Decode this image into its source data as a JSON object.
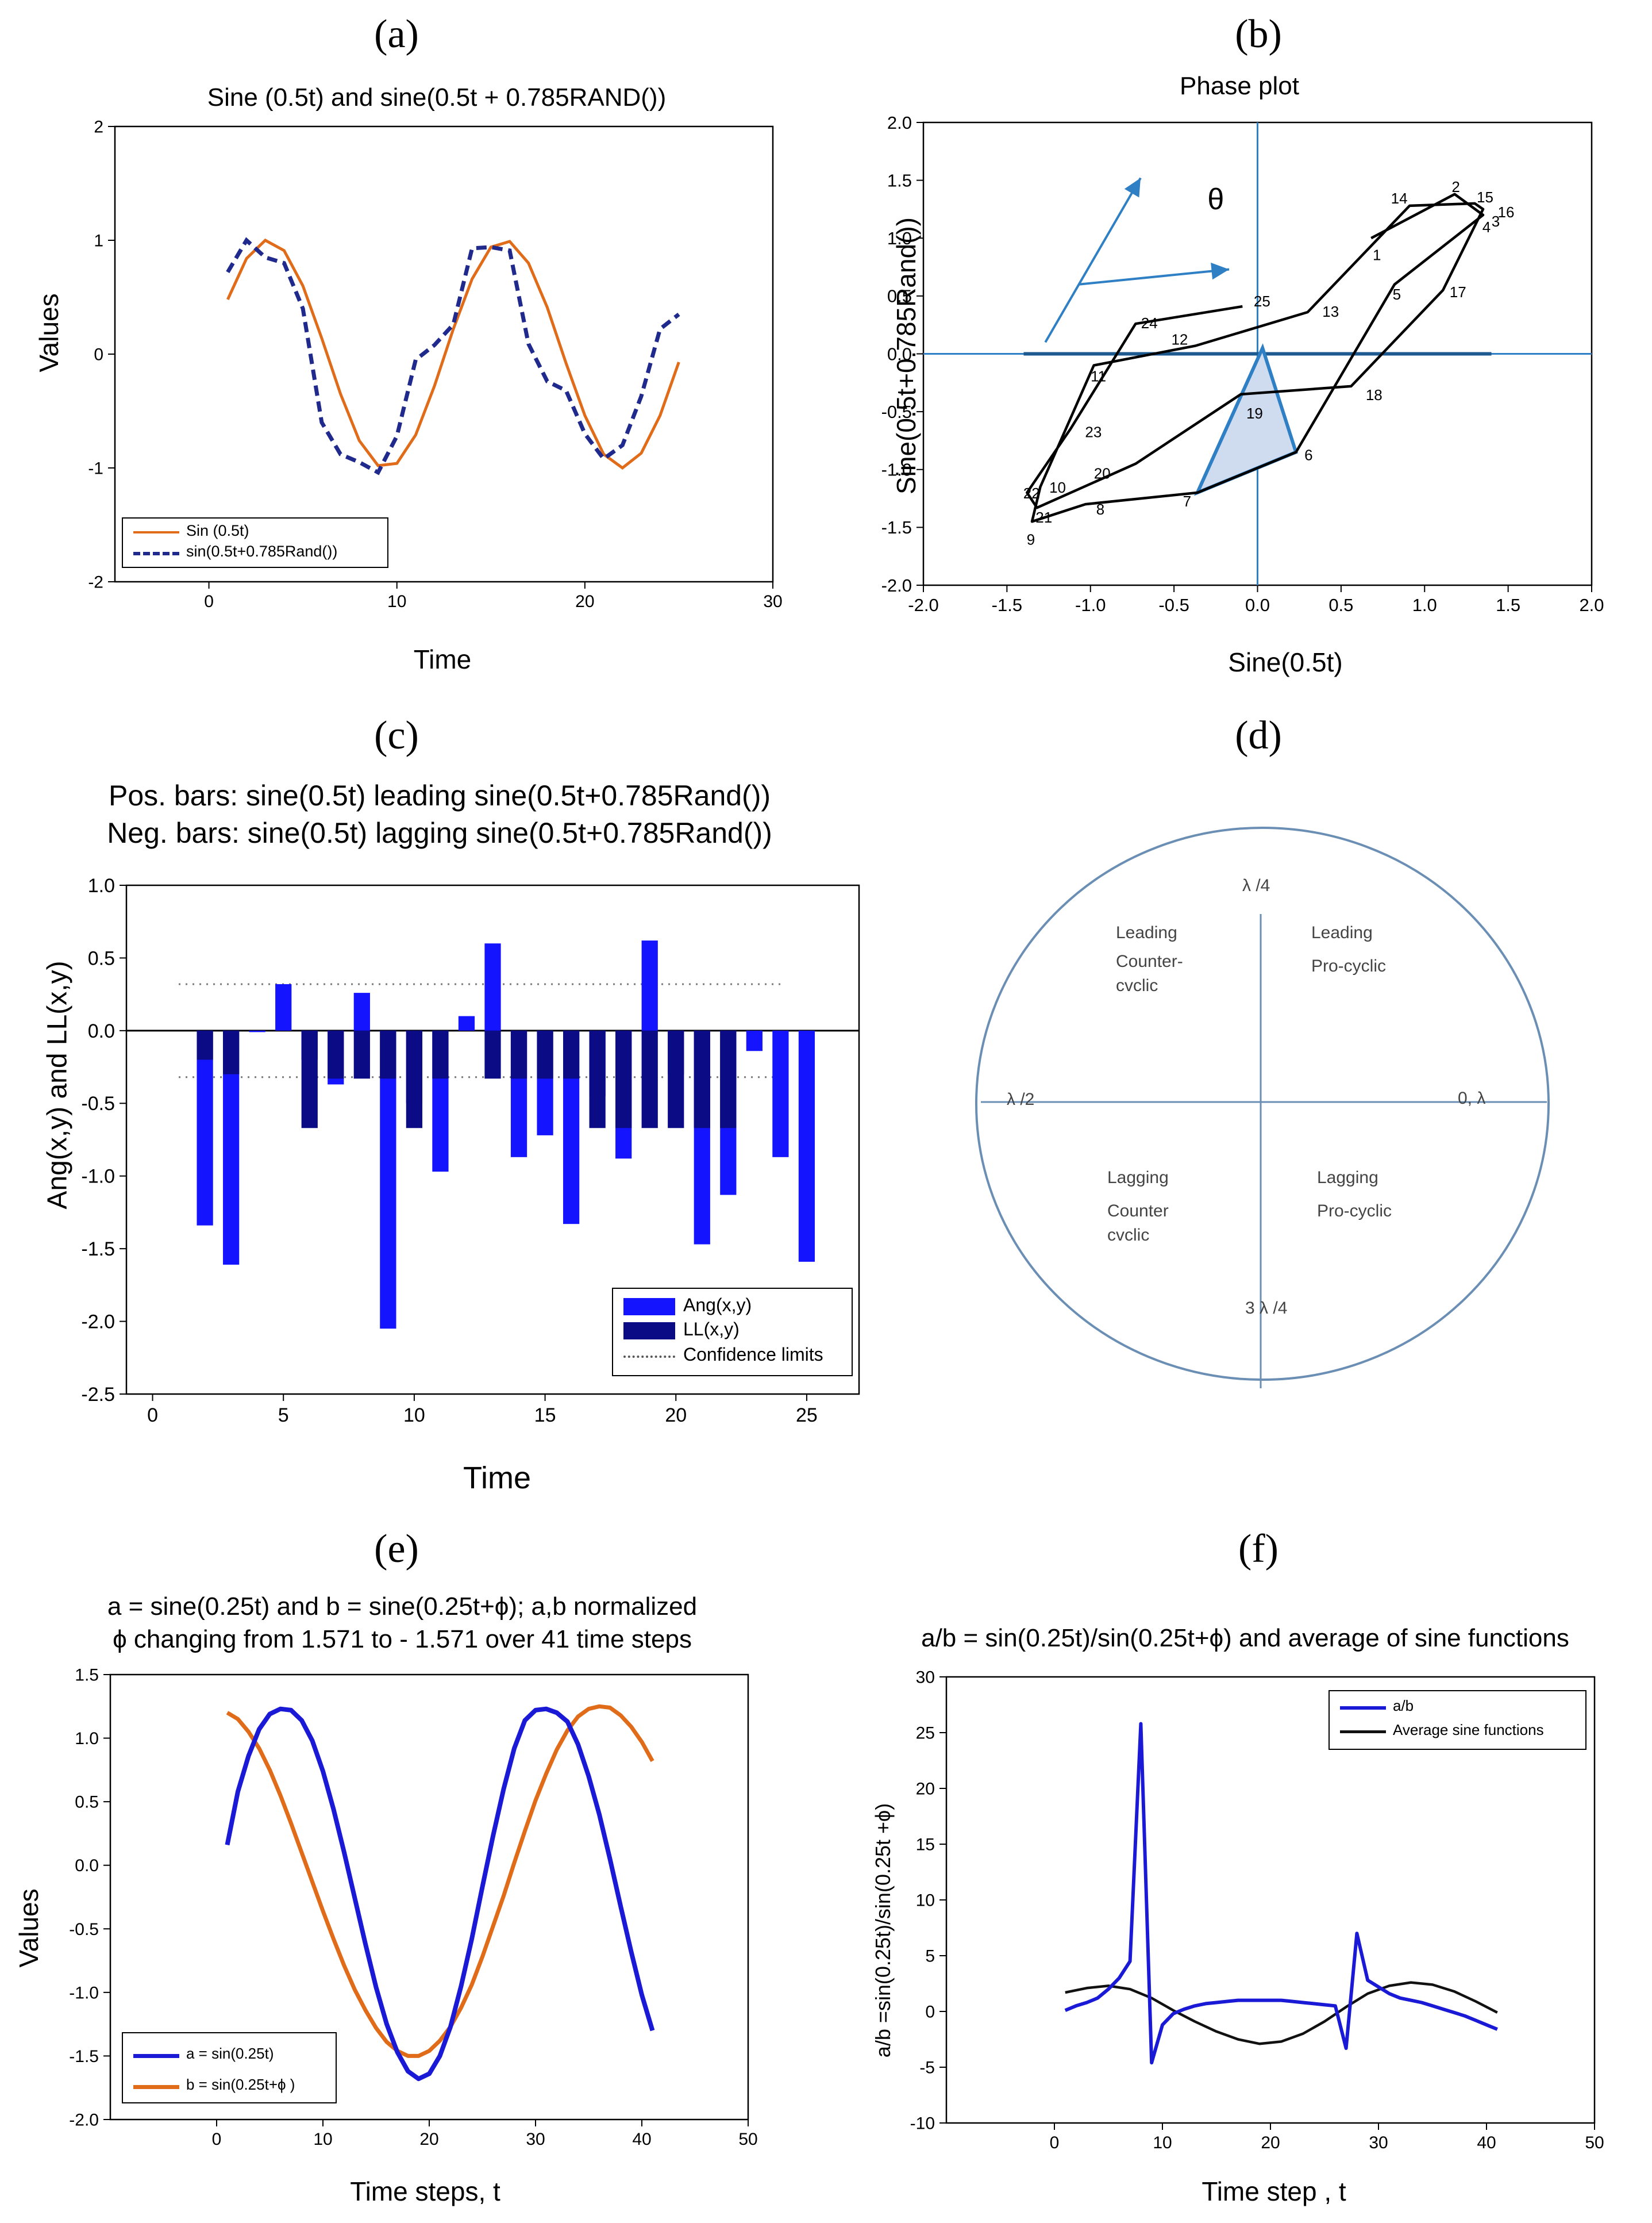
{
  "panels": {
    "a": {
      "label": "(a)"
    },
    "b": {
      "label": "(b)"
    },
    "c": {
      "label": "(c)"
    },
    "d": {
      "label": "(d)"
    },
    "e": {
      "label": "(e)"
    },
    "f": {
      "label": "(f)"
    }
  },
  "colors": {
    "orange": "#e06c1a",
    "navy": "#1f2a8c",
    "blue": "#1a1ad6",
    "darkblue": "#0b0b85",
    "brightblue": "#1414ff",
    "steelblue": "#2f7fc4"
  },
  "chart_data": [
    {
      "id": "a",
      "type": "line",
      "title": "Sine (0.5t) and sine(0.5t + 0.785RAND())",
      "xlabel": "Time",
      "ylabel": "Values",
      "xlim": [
        -5,
        30
      ],
      "ylim": [
        -2,
        2
      ],
      "xticks": [
        0,
        10,
        20,
        30
      ],
      "yticks": [
        -2,
        -1,
        0,
        1,
        2
      ],
      "legend": "bottom-left",
      "series": [
        {
          "name": "Sin (0.5t)",
          "style": "solid",
          "color": "#e06c1a",
          "x": [
            1,
            2,
            3,
            4,
            5,
            6,
            7,
            8,
            9,
            10,
            11,
            12,
            13,
            14,
            15,
            16,
            17,
            18,
            19,
            20,
            21,
            22,
            23,
            24,
            25
          ],
          "y": [
            0.48,
            0.84,
            1.0,
            0.91,
            0.6,
            0.14,
            -0.35,
            -0.76,
            -0.98,
            -0.96,
            -0.71,
            -0.28,
            0.22,
            0.66,
            0.94,
            0.99,
            0.8,
            0.41,
            -0.08,
            -0.54,
            -0.88,
            -1.0,
            -0.87,
            -0.54,
            -0.07
          ]
        },
        {
          "name": "sin(0.5t+0.785Rand())",
          "style": "dashed",
          "color": "#1f2a8c",
          "x": [
            1,
            2,
            3,
            4,
            5,
            6,
            7,
            8,
            9,
            10,
            11,
            12,
            13,
            14,
            15,
            16,
            17,
            18,
            19,
            20,
            21,
            22,
            23,
            24,
            25
          ],
          "y": [
            0.72,
            1.0,
            0.85,
            0.8,
            0.4,
            -0.6,
            -0.88,
            -0.95,
            -1.04,
            -0.72,
            -0.05,
            0.08,
            0.26,
            0.93,
            0.94,
            0.91,
            0.09,
            -0.24,
            -0.32,
            -0.7,
            -0.92,
            -0.8,
            -0.37,
            0.22,
            0.35
          ]
        }
      ]
    },
    {
      "id": "b",
      "type": "line",
      "title": "Phase plot",
      "xlabel": "Sine(0.5t)",
      "ylabel": "Sine(0.5t+0.785Rand())",
      "xlim": [
        -2.0,
        2.0
      ],
      "ylim": [
        -2.0,
        2.0
      ],
      "xticks": [
        "-2.0",
        "-1.5",
        "-1.0",
        "-0.5",
        "0.0",
        "0.5",
        "1.0",
        "1.5",
        "2.0"
      ],
      "yticks": [
        "-2.0",
        "-1.5",
        "-1.0",
        "-0.5",
        "0.0",
        "0.5",
        "1.0",
        "1.5",
        "2.0"
      ],
      "annotation": "θ",
      "points": [
        {
          "t": 1,
          "x": 0.68,
          "y": 1.0
        },
        {
          "t": 2,
          "x": 1.18,
          "y": 1.38
        },
        {
          "t": 3,
          "x": 1.35,
          "y": 1.2
        },
        {
          "t": 4,
          "x": 1.35,
          "y": 1.2
        },
        {
          "t": 5,
          "x": 0.82,
          "y": 0.6
        },
        {
          "t": 6,
          "x": 0.23,
          "y": -0.85
        },
        {
          "t": 7,
          "x": -0.36,
          "y": -1.2
        },
        {
          "t": 8,
          "x": -1.03,
          "y": -1.3
        },
        {
          "t": 9,
          "x": -1.35,
          "y": -1.45
        },
        {
          "t": 10,
          "x": -1.3,
          "y": -1.15
        },
        {
          "t": 11,
          "x": -0.98,
          "y": -0.1
        },
        {
          "t": 12,
          "x": -0.37,
          "y": 0.07
        },
        {
          "t": 13,
          "x": 0.3,
          "y": 0.36
        },
        {
          "t": 14,
          "x": 0.91,
          "y": 1.28
        },
        {
          "t": 15,
          "x": 1.3,
          "y": 1.3
        },
        {
          "t": 16,
          "x": 1.35,
          "y": 1.25
        },
        {
          "t": 17,
          "x": 1.11,
          "y": 0.55
        },
        {
          "t": 18,
          "x": 0.56,
          "y": -0.28
        },
        {
          "t": 19,
          "x": -0.1,
          "y": -0.35
        },
        {
          "t": 20,
          "x": -0.73,
          "y": -0.95
        },
        {
          "t": 21,
          "x": -1.32,
          "y": -1.33
        },
        {
          "t": 22,
          "x": -1.38,
          "y": -1.2
        },
        {
          "t": 23,
          "x": -1.12,
          "y": -0.65
        },
        {
          "t": 24,
          "x": -0.73,
          "y": 0.26
        },
        {
          "t": 25,
          "x": -0.09,
          "y": 0.41
        }
      ]
    },
    {
      "id": "c",
      "type": "bar",
      "title": "Pos. bars: sine(0.5t) leading sine(0.5t+0.785Rand())",
      "subtitle": "Neg. bars: sine(0.5t) lagging sine(0.5t+0.785Rand())",
      "xlabel": "Time",
      "ylabel": "Ang(x,y) and LL(x,y)",
      "xlim": [
        -1,
        27
      ],
      "ylim": [
        -2.5,
        1.0
      ],
      "xticks": [
        0,
        5,
        10,
        15,
        20,
        25
      ],
      "yticks": [
        "-2.5",
        "-2.0",
        "-1.5",
        "-1.0",
        "-0.5",
        "0.0",
        "0.5",
        "1.0"
      ],
      "confidence_limits": [
        0.32,
        -0.32
      ],
      "x": [
        2,
        3,
        4,
        5,
        6,
        7,
        8,
        9,
        10,
        11,
        12,
        13,
        14,
        15,
        16,
        17,
        18,
        19,
        20,
        21,
        22,
        23,
        24,
        25
      ],
      "series": [
        {
          "name": "Ang(x,y)",
          "color": "#1414ff",
          "values": [
            -1.34,
            -1.61,
            -0.01,
            0.32,
            -0.2,
            -0.37,
            0.26,
            -2.05,
            -0.5,
            -0.97,
            0.1,
            0.6,
            -0.87,
            -0.72,
            -1.33,
            -0.45,
            -0.88,
            0.62,
            -0.3,
            -1.47,
            -1.13,
            -0.14,
            -0.87,
            -1.59
          ]
        },
        {
          "name": "LL(x,y)",
          "color": "#0b0b85",
          "values": [
            -0.2,
            -0.3,
            0,
            0,
            -0.67,
            -0.33,
            -0.33,
            -0.33,
            -0.67,
            -0.33,
            0,
            -0.33,
            -0.33,
            -0.33,
            -0.33,
            -0.67,
            -0.67,
            -0.67,
            -0.67,
            -0.67,
            -0.67,
            0,
            0,
            0
          ]
        }
      ],
      "legend_extra": "Confidence limits"
    },
    {
      "id": "d",
      "type": "diagram",
      "axis_labels": {
        "top": "λ /4",
        "left": "λ /2",
        "right": "0, λ",
        "bottom": "3 λ /4"
      },
      "quadrants": {
        "ul": [
          "Leading",
          "Counter-",
          "cvclic"
        ],
        "ur": [
          "Leading",
          "Pro-cyclic"
        ],
        "ll": [
          "Lagging",
          "Counter",
          "cvclic"
        ],
        "lr": [
          "Lagging",
          "Pro-cyclic"
        ]
      }
    },
    {
      "id": "e",
      "type": "line",
      "title": "a = sine(0.25t) and b = sine(0.25t+ϕ); a,b normalized",
      "subtitle": "ϕ changing from 1.571 to - 1.571 over 41 time steps",
      "xlabel": "Time steps, t",
      "ylabel": "Values",
      "xlim": [
        -10,
        50
      ],
      "ylim": [
        -2.0,
        1.5
      ],
      "xticks": [
        0,
        10,
        20,
        30,
        40,
        50
      ],
      "yticks": [
        "-2.0",
        "-1.5",
        "-1.0",
        "-0.5",
        "0.0",
        "0.5",
        "1.0",
        "1.5"
      ],
      "legend": "bottom-left",
      "series": [
        {
          "name": "a = sin(0.25t)",
          "color": "#1a1ad6",
          "x": [
            1,
            2,
            3,
            4,
            5,
            6,
            7,
            8,
            9,
            10,
            11,
            12,
            13,
            14,
            15,
            16,
            17,
            18,
            19,
            20,
            21,
            22,
            23,
            24,
            25,
            26,
            27,
            28,
            29,
            30,
            31,
            32,
            33,
            34,
            35,
            36,
            37,
            38,
            39,
            40,
            41
          ],
          "y": [
            0.16,
            0.58,
            0.86,
            1.07,
            1.19,
            1.23,
            1.22,
            1.14,
            0.98,
            0.74,
            0.44,
            0.1,
            -0.26,
            -0.62,
            -0.96,
            -1.25,
            -1.47,
            -1.62,
            -1.68,
            -1.64,
            -1.5,
            -1.27,
            -0.95,
            -0.58,
            -0.17,
            0.23,
            0.6,
            0.92,
            1.14,
            1.22,
            1.23,
            1.2,
            1.13,
            0.95,
            0.7,
            0.4,
            0.05,
            -0.32,
            -0.68,
            -1.02,
            -1.3
          ]
        },
        {
          "name": "b = sin(0.25t+ϕ )",
          "color": "#e06c1a",
          "x": [
            1,
            2,
            3,
            4,
            5,
            6,
            7,
            8,
            9,
            10,
            11,
            12,
            13,
            14,
            15,
            16,
            17,
            18,
            19,
            20,
            21,
            22,
            23,
            24,
            25,
            26,
            27,
            28,
            29,
            30,
            31,
            32,
            33,
            34,
            35,
            36,
            37,
            38,
            39,
            40,
            41
          ],
          "y": [
            1.2,
            1.15,
            1.05,
            0.92,
            0.75,
            0.55,
            0.33,
            0.1,
            -0.13,
            -0.36,
            -0.58,
            -0.79,
            -0.98,
            -1.14,
            -1.28,
            -1.39,
            -1.46,
            -1.5,
            -1.5,
            -1.46,
            -1.38,
            -1.27,
            -1.12,
            -0.94,
            -0.72,
            -0.48,
            -0.24,
            0.02,
            0.27,
            0.51,
            0.72,
            0.91,
            1.06,
            1.17,
            1.23,
            1.25,
            1.24,
            1.18,
            1.09,
            0.97,
            0.82
          ]
        }
      ]
    },
    {
      "id": "f",
      "type": "line",
      "title": "a/b = sin(0.25t)/sin(0.25t+ϕ) and average of sine functions",
      "xlabel": "Time step , t",
      "ylabel": "a/b =sin(0.25t)/sin(0.25t +ϕ)",
      "xlim": [
        -10,
        50
      ],
      "ylim": [
        -10,
        30
      ],
      "xticks": [
        0,
        10,
        20,
        30,
        40,
        50
      ],
      "yticks": [
        -10,
        -5,
        0,
        5,
        10,
        15,
        20,
        25,
        30
      ],
      "legend": "top-right",
      "series": [
        {
          "name": "a/b",
          "color": "#1a1ad6",
          "x": [
            1,
            2,
            3,
            4,
            5,
            6,
            7,
            8,
            9,
            10,
            11,
            12,
            13,
            14,
            15,
            16,
            17,
            18,
            19,
            20,
            21,
            22,
            23,
            24,
            25,
            26,
            27,
            28,
            29,
            30,
            31,
            32,
            33,
            34,
            35,
            36,
            37,
            38,
            39,
            40,
            41
          ],
          "y": [
            0.1,
            0.5,
            0.8,
            1.2,
            2.0,
            3.0,
            4.5,
            25.8,
            -4.6,
            -1.2,
            -0.2,
            0.2,
            0.5,
            0.7,
            0.8,
            0.9,
            1.0,
            1.0,
            1.0,
            1.0,
            1.0,
            0.9,
            0.8,
            0.7,
            0.6,
            0.5,
            -3.3,
            7.0,
            2.8,
            2.2,
            1.6,
            1.2,
            1.0,
            0.8,
            0.5,
            0.2,
            -0.1,
            -0.4,
            -0.8,
            -1.2,
            -1.6
          ]
        },
        {
          "name": "Average sine functions",
          "color": "#111111",
          "x": [
            1,
            3,
            5,
            7,
            9,
            11,
            13,
            15,
            17,
            19,
            21,
            23,
            25,
            27,
            29,
            31,
            33,
            35,
            37,
            39,
            41
          ],
          "y": [
            1.7,
            2.1,
            2.3,
            2.0,
            1.2,
            0.1,
            -0.9,
            -1.8,
            -2.5,
            -2.9,
            -2.7,
            -2.0,
            -0.9,
            0.4,
            1.6,
            2.3,
            2.6,
            2.4,
            1.8,
            0.9,
            -0.1
          ]
        }
      ]
    }
  ]
}
